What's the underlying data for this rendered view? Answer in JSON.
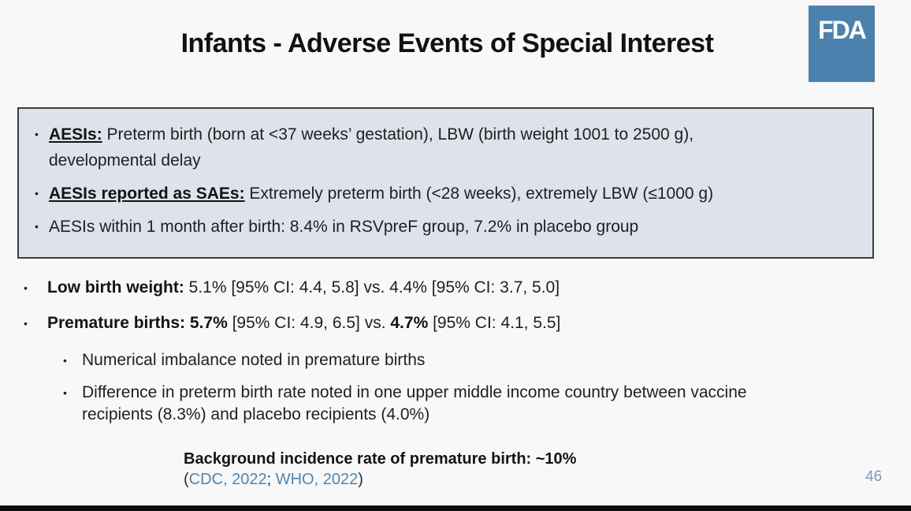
{
  "colors": {
    "logo_blue": "#4a81ad",
    "box_bg": "#dde2eb",
    "box_border": "#3d3d3d",
    "link_blue": "#4e86b4",
    "page_num_blue": "#8494bf"
  },
  "header": {
    "title": "Infants - Adverse Events of Special Interest",
    "logo_text": "FDA"
  },
  "aesi_box": {
    "bullets": [
      {
        "lines": [
          [
            {
              "text": "AESIs:",
              "bold": true,
              "underline": true
            },
            {
              "text": " Preterm birth (born at <37 weeks’ gestation), LBW (birth weight 1001 to 2500 g),"
            }
          ],
          [
            {
              "text": "developmental delay"
            }
          ]
        ]
      },
      {
        "lines": [
          [
            {
              "text": "AESIs reported as SAEs:",
              "bold": true,
              "underline": true
            },
            {
              "text": " Extremely preterm birth (<28 weeks), extremely LBW (≤1000 g)"
            }
          ]
        ]
      },
      {
        "lines": [
          [
            {
              "text": "AESIs within 1 month after birth: 8.4% in RSVpreF group, 7.2% in placebo group"
            }
          ]
        ]
      }
    ]
  },
  "body": {
    "bullets": [
      {
        "level": 0,
        "lines": [
          [
            {
              "text": "Low birth weight:",
              "bold": true
            },
            {
              "text": " 5.1% [95% CI: 4.4, 5.8] vs. 4.4% [95% CI: 3.7, 5.0]"
            }
          ]
        ]
      },
      {
        "level": 0,
        "lines": [
          [
            {
              "text": "Premature births: ",
              "bold": true
            },
            {
              "text": "5.7%",
              "bold": true
            },
            {
              "text": " [95% CI: 4.9, 6.5] vs. "
            },
            {
              "text": "4.7%",
              "bold": true
            },
            {
              "text": " [95% CI: 4.1, 5.5]"
            }
          ]
        ]
      },
      {
        "level": 1,
        "lines": [
          [
            {
              "text": "Numerical imbalance noted in premature births"
            }
          ]
        ]
      },
      {
        "level": 1,
        "lines": [
          [
            {
              "text": "Difference in preterm birth rate noted in one upper middle income country between vaccine"
            }
          ],
          [
            {
              "text": "recipients (8.3%) and placebo recipients (4.0%)"
            }
          ]
        ]
      }
    ]
  },
  "footnote": {
    "lines": [
      [
        {
          "text": "Background incidence rate of premature birth: ~10%",
          "bold": true
        }
      ],
      [
        {
          "text": "("
        },
        {
          "text": "CDC, 2022",
          "link": true,
          "name": "cdc-2022-link"
        },
        {
          "text": "; "
        },
        {
          "text": "WHO, 2022",
          "link": true,
          "name": "who-2022-link"
        },
        {
          "text": ")"
        }
      ]
    ]
  },
  "page_number": "46"
}
